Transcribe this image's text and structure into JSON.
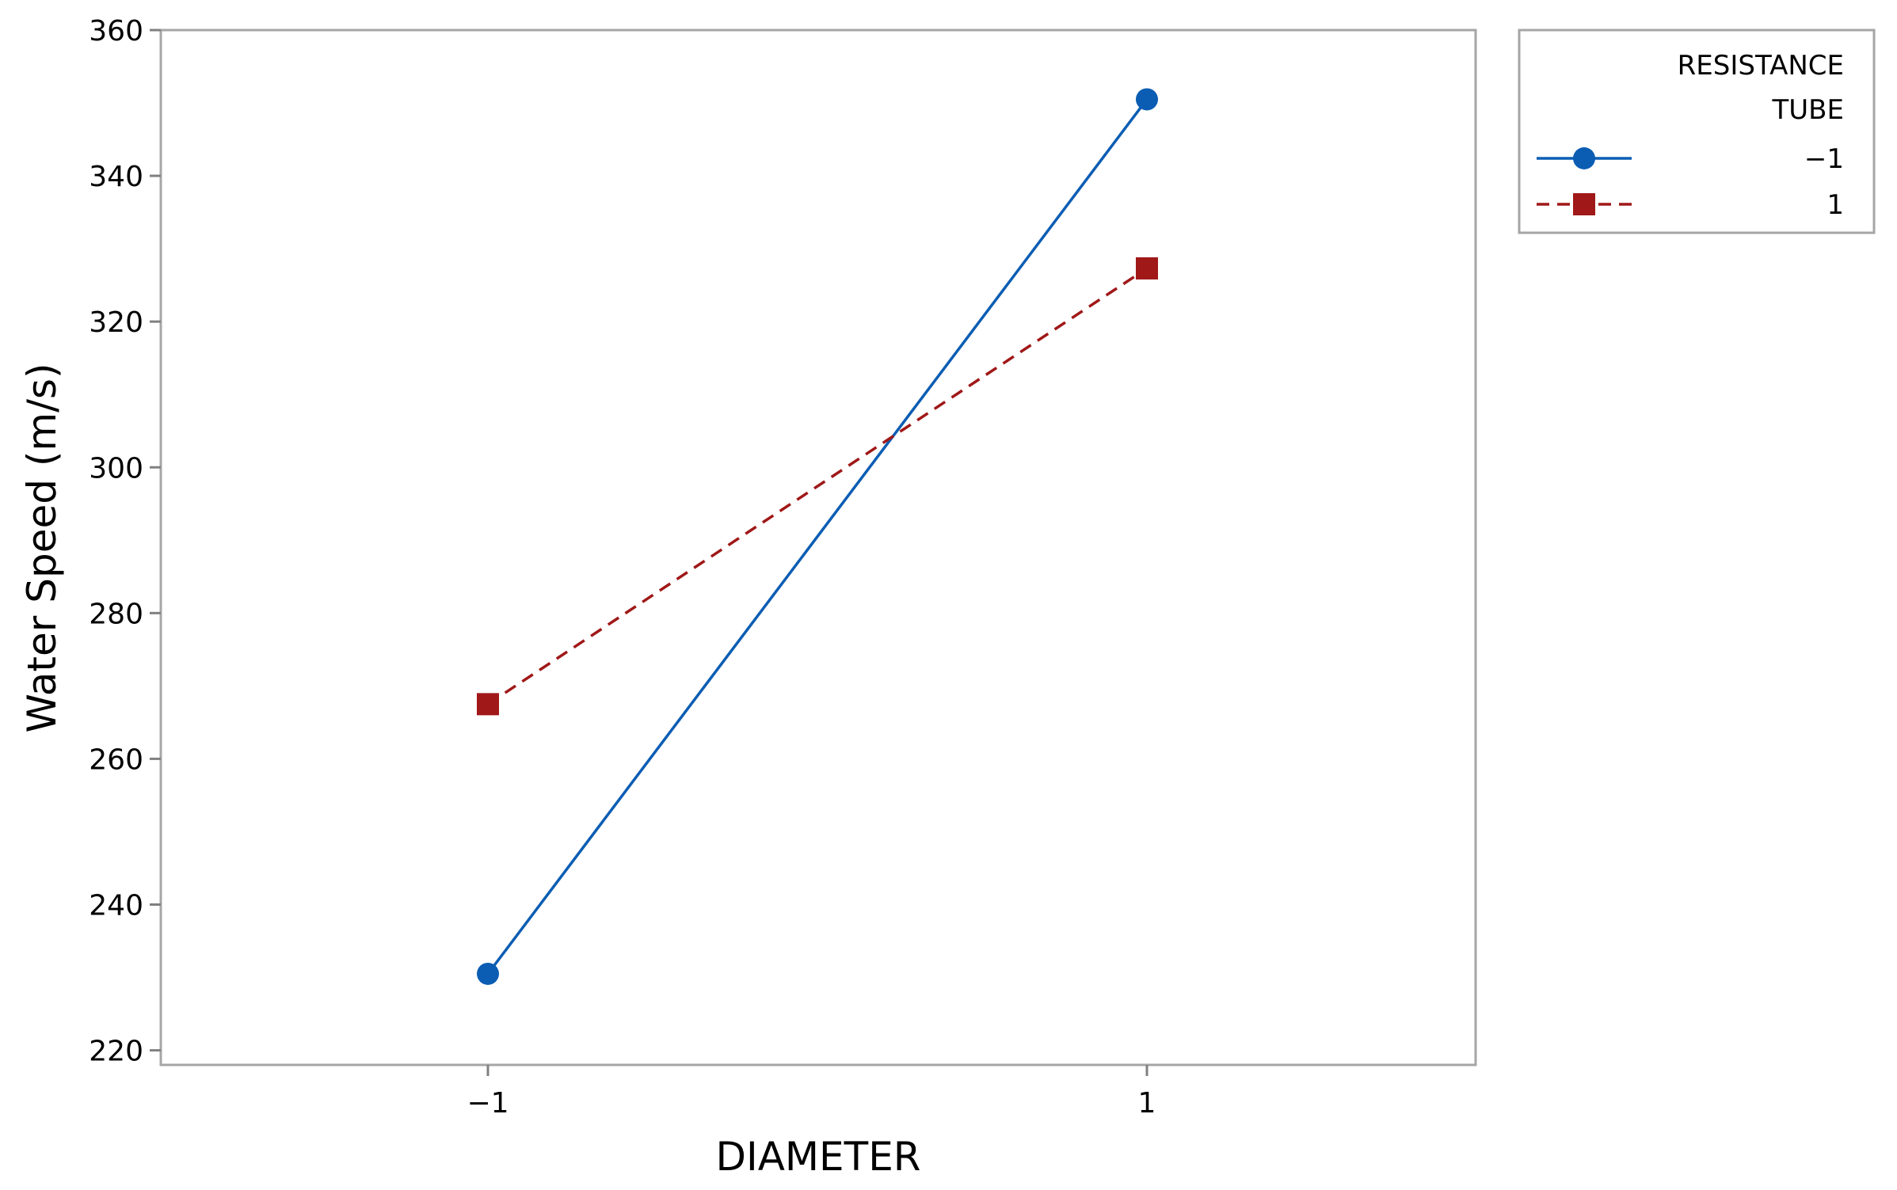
{
  "chart_data": {
    "type": "line",
    "xlabel": "DIAMETER",
    "ylabel": "Water Speed (m/s)",
    "categories": [
      "−1",
      "1"
    ],
    "x": [
      -1,
      1
    ],
    "ylim": [
      218,
      360
    ],
    "yticks": [
      220,
      240,
      260,
      280,
      300,
      320,
      340,
      360
    ],
    "ytick_labels": [
      "220",
      "240",
      "260",
      "280",
      "300",
      "320",
      "340",
      "360"
    ],
    "grid": false,
    "legend": {
      "title_line1": "RESISTANCE",
      "title_line2": "TUBE",
      "placement": "outside-top-right"
    },
    "series": [
      {
        "name": "−1",
        "values": [
          230.5,
          350.5
        ],
        "color": "#0b5db3",
        "marker": "circle",
        "line_style": "solid"
      },
      {
        "name": "1",
        "values": [
          267.5,
          327.3
        ],
        "color": "#a01818",
        "marker": "square",
        "line_style": "dashed"
      }
    ]
  }
}
